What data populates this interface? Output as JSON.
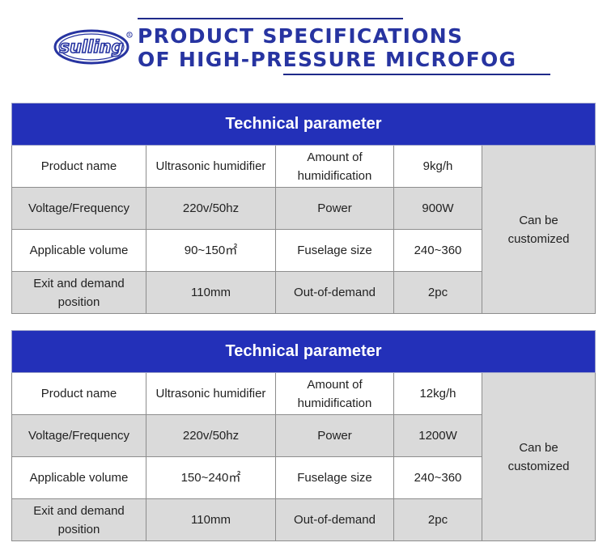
{
  "header": {
    "logo_text": "sulling",
    "title_line1": "PRODUCT SPECIFICATIONS",
    "title_line2": "OF HIGH-PRESSURE MICROFOG",
    "colors": {
      "title": "#2734a1",
      "table_header": "#2330b9",
      "shaded_cell": "#dadada"
    }
  },
  "tables": [
    {
      "title": "Technical parameter",
      "labels": {
        "product_name": "Product name",
        "voltage": "Voltage/Frequency",
        "volume": "Applicable volume",
        "exit_line1": "Exit and demand",
        "exit_line2": "position",
        "amount_line1": "Amount of",
        "amount_line2": "humidification",
        "power": "Power",
        "fuselage": "Fuselage size",
        "out_of_demand": "Out-of-demand"
      },
      "values": {
        "product_name": "Ultrasonic humidifier",
        "voltage": "220v/50hz",
        "volume": "90~150㎡",
        "exit": "110mm",
        "amount": "9kg/h",
        "power": "900W",
        "fuselage": "240~360",
        "out_of_demand": "2pc"
      },
      "custom_line1": "Can be",
      "custom_line2": "customized"
    },
    {
      "title": "Technical parameter",
      "labels": {
        "product_name": "Product name",
        "voltage": "Voltage/Frequency",
        "volume": "Applicable volume",
        "exit_line1": "Exit and demand",
        "exit_line2": "position",
        "amount_line1": "Amount of",
        "amount_line2": "humidification",
        "power": "Power",
        "fuselage": "Fuselage size",
        "out_of_demand": "Out-of-demand"
      },
      "values": {
        "product_name": "Ultrasonic humidifier",
        "voltage": "220v/50hz",
        "volume": "150~240㎡",
        "exit": "110mm",
        "amount": "12kg/h",
        "power": "1200W",
        "fuselage": "240~360",
        "out_of_demand": "2pc"
      },
      "custom_line1": "Can be",
      "custom_line2": "customized"
    }
  ]
}
